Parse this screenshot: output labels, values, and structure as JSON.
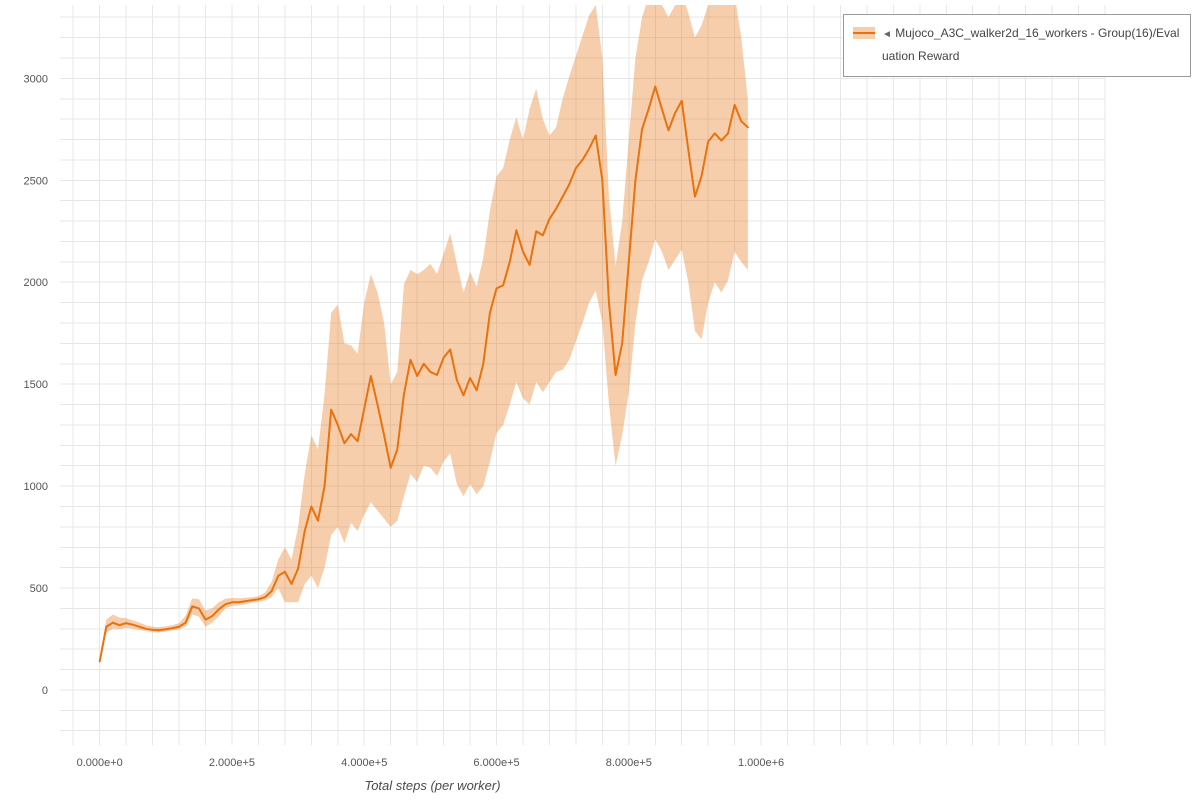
{
  "page": {
    "background": "#ffffff"
  },
  "legend": {
    "collapse_marker": "◄",
    "label": "Mujoco_A3C_walker2d_16_workers - Group(16)/Evaluation Reward"
  },
  "chart_data": {
    "type": "line",
    "title": "",
    "xlabel": "Total steps (per worker)",
    "ylabel": "",
    "xlim": [
      -60000,
      1520000
    ],
    "ylim": [
      -270,
      3360
    ],
    "grid": true,
    "legend_position": "top-right",
    "x_ticks": {
      "values": [
        0,
        200000,
        400000,
        600000,
        800000,
        1000000
      ],
      "labels": [
        "0.000e+0",
        "2.000e+5",
        "4.000e+5",
        "6.000e+5",
        "8.000e+5",
        "1.000e+6"
      ]
    },
    "y_ticks": {
      "values": [
        0,
        500,
        1000,
        1500,
        2000,
        2500,
        3000
      ],
      "labels": [
        "0",
        "500",
        "1000",
        "1500",
        "2000",
        "2500",
        "3000"
      ]
    },
    "minor_grid": {
      "x_step": 40000,
      "y_step": 100
    },
    "grid_color": "#e7e7e7",
    "tick_color": "#555555",
    "series": [
      {
        "name": "Mujoco_A3C_walker2d_16_workers - Group(16)/Evaluation Reward",
        "color": "#e8720e",
        "band_fill": "#e8720e",
        "band_opacity": 0.35,
        "x": [
          0,
          10000,
          20000,
          30000,
          40000,
          50000,
          60000,
          70000,
          80000,
          90000,
          100000,
          110000,
          120000,
          130000,
          140000,
          150000,
          160000,
          170000,
          180000,
          190000,
          200000,
          210000,
          220000,
          230000,
          240000,
          250000,
          260000,
          270000,
          280000,
          290000,
          300000,
          310000,
          320000,
          330000,
          340000,
          350000,
          360000,
          370000,
          380000,
          390000,
          400000,
          410000,
          420000,
          430000,
          440000,
          450000,
          460000,
          470000,
          480000,
          490000,
          500000,
          510000,
          520000,
          530000,
          540000,
          550000,
          560000,
          570000,
          580000,
          590000,
          600000,
          610000,
          620000,
          630000,
          640000,
          650000,
          660000,
          670000,
          680000,
          690000,
          700000,
          710000,
          720000,
          730000,
          740000,
          750000,
          760000,
          770000,
          780000,
          790000,
          800000,
          810000,
          820000,
          830000,
          840000,
          850000,
          860000,
          870000,
          880000,
          890000,
          900000,
          910000,
          920000,
          930000,
          940000,
          950000,
          960000,
          970000,
          980000
        ],
        "mean": [
          140,
          310,
          330,
          318,
          328,
          320,
          310,
          300,
          295,
          293,
          298,
          303,
          310,
          330,
          410,
          400,
          345,
          362,
          395,
          420,
          430,
          430,
          435,
          440,
          445,
          455,
          485,
          560,
          580,
          520,
          595,
          780,
          900,
          830,
          1000,
          1375,
          1300,
          1210,
          1255,
          1220,
          1380,
          1540,
          1400,
          1250,
          1090,
          1180,
          1450,
          1620,
          1540,
          1600,
          1560,
          1545,
          1630,
          1670,
          1520,
          1445,
          1530,
          1470,
          1600,
          1850,
          1970,
          1985,
          2100,
          2255,
          2150,
          2085,
          2250,
          2230,
          2310,
          2360,
          2420,
          2480,
          2560,
          2600,
          2655,
          2720,
          2500,
          1900,
          1545,
          1700,
          2100,
          2500,
          2750,
          2850,
          2960,
          2850,
          2745,
          2830,
          2890,
          2650,
          2420,
          2520,
          2690,
          2730,
          2695,
          2730,
          2870,
          2790,
          2760
        ],
        "band_lower": [
          135,
          280,
          300,
          298,
          305,
          300,
          295,
          288,
          283,
          282,
          287,
          292,
          298,
          310,
          370,
          360,
          310,
          330,
          360,
          400,
          412,
          415,
          420,
          428,
          432,
          440,
          455,
          500,
          430,
          430,
          430,
          520,
          560,
          500,
          600,
          760,
          800,
          720,
          820,
          780,
          860,
          920,
          880,
          840,
          800,
          830,
          950,
          1060,
          1020,
          1100,
          1090,
          1050,
          1120,
          1160,
          1010,
          950,
          1010,
          960,
          1000,
          1120,
          1260,
          1300,
          1400,
          1510,
          1430,
          1400,
          1510,
          1460,
          1510,
          1560,
          1570,
          1620,
          1710,
          1800,
          1900,
          1960,
          1800,
          1400,
          1100,
          1250,
          1460,
          1800,
          2010,
          2100,
          2210,
          2150,
          2060,
          2110,
          2160,
          2000,
          1760,
          1720,
          1900,
          2000,
          1950,
          2010,
          2150,
          2100,
          2060
        ],
        "band_upper": [
          150,
          345,
          370,
          355,
          352,
          342,
          330,
          318,
          310,
          308,
          312,
          318,
          328,
          365,
          450,
          445,
          390,
          400,
          430,
          448,
          452,
          450,
          452,
          455,
          460,
          478,
          530,
          640,
          700,
          640,
          800,
          1060,
          1250,
          1180,
          1450,
          1850,
          1890,
          1700,
          1690,
          1650,
          1900,
          2040,
          1950,
          1800,
          1500,
          1560,
          1990,
          2060,
          2040,
          2060,
          2090,
          2040,
          2140,
          2240,
          2090,
          1950,
          2050,
          1980,
          2120,
          2350,
          2520,
          2560,
          2700,
          2810,
          2700,
          2850,
          2950,
          2800,
          2720,
          2760,
          2900,
          3010,
          3110,
          3210,
          3310,
          3360,
          3100,
          2420,
          2080,
          2300,
          2700,
          3100,
          3300,
          3400,
          3420,
          3360,
          3300,
          3360,
          3420,
          3320,
          3200,
          3260,
          3360,
          3400,
          3360,
          3400,
          3410,
          3200,
          2900
        ]
      }
    ]
  }
}
